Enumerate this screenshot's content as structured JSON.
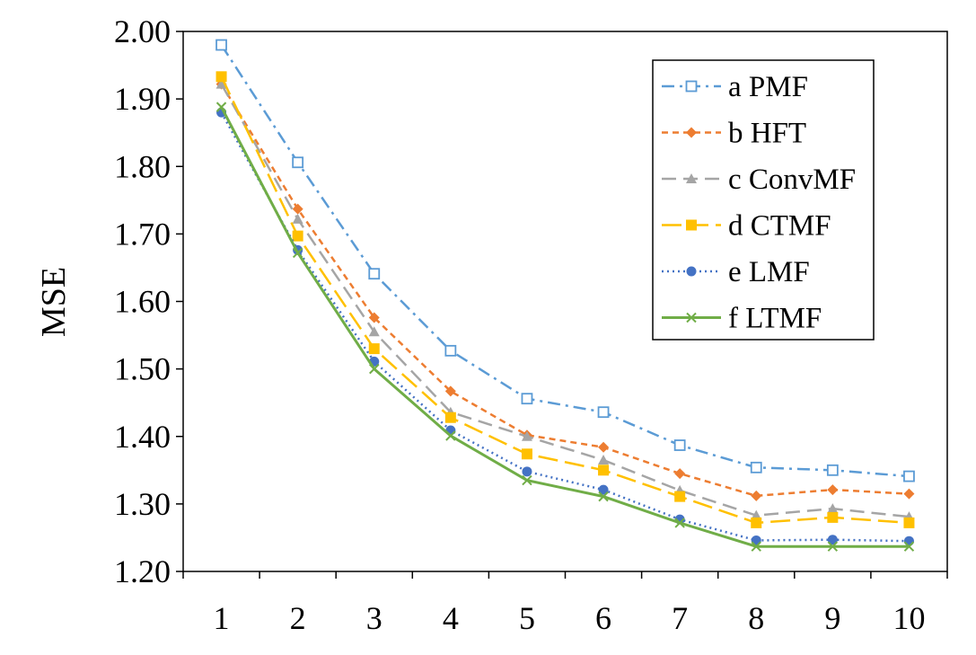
{
  "chart_data": {
    "type": "line",
    "ylabel": "MSE",
    "xlabel": "",
    "categories": [
      "1",
      "2",
      "3",
      "4",
      "5",
      "6",
      "7",
      "8",
      "9",
      "10"
    ],
    "ylim": [
      1.2,
      2.0
    ],
    "yticks": [
      "1.20",
      "1.30",
      "1.40",
      "1.50",
      "1.60",
      "1.70",
      "1.80",
      "1.90",
      "2.00"
    ],
    "grid": false,
    "legend_position": "top-right",
    "series": [
      {
        "name": "a PMF",
        "color": "#5B9BD5",
        "marker": "open-square",
        "dash": "dash-dot",
        "values": [
          1.98,
          1.806,
          1.641,
          1.527,
          1.456,
          1.436,
          1.387,
          1.354,
          1.35,
          1.341
        ]
      },
      {
        "name": "b HFT",
        "color": "#ED7D31",
        "marker": "diamond",
        "dash": "short-dash",
        "values": [
          1.922,
          1.737,
          1.576,
          1.467,
          1.402,
          1.384,
          1.345,
          1.312,
          1.321,
          1.315
        ]
      },
      {
        "name": "c ConvMF",
        "color": "#A5A5A5",
        "marker": "triangle",
        "dash": "dash",
        "values": [
          1.922,
          1.722,
          1.555,
          1.436,
          1.4,
          1.365,
          1.32,
          1.283,
          1.293,
          1.281
        ]
      },
      {
        "name": "d CTMF",
        "color": "#FFC000",
        "marker": "filled-square",
        "dash": "long-dash",
        "values": [
          1.933,
          1.697,
          1.53,
          1.428,
          1.374,
          1.35,
          1.311,
          1.272,
          1.28,
          1.272
        ]
      },
      {
        "name": "e LMF",
        "color": "#4472C4",
        "marker": "circle",
        "dash": "dot",
        "values": [
          1.88,
          1.676,
          1.511,
          1.409,
          1.348,
          1.321,
          1.277,
          1.246,
          1.247,
          1.245
        ]
      },
      {
        "name": "f LTMF",
        "color": "#70AD47",
        "marker": "x",
        "dash": "solid",
        "values": [
          1.888,
          1.672,
          1.5,
          1.401,
          1.335,
          1.311,
          1.272,
          1.237,
          1.237,
          1.237
        ]
      }
    ]
  }
}
